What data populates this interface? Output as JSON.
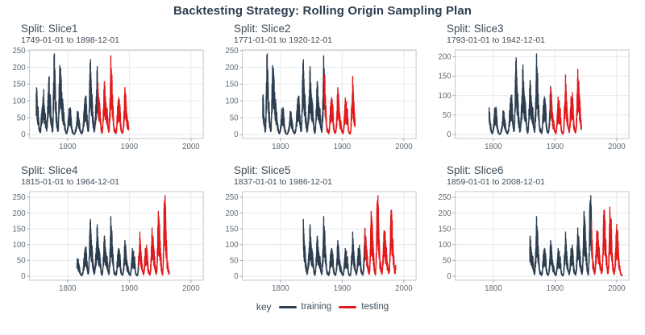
{
  "chart_data": {
    "type": "line",
    "title": "Backtesting Strategy: Rolling Origin Sampling Plan",
    "legend": {
      "title": "key",
      "position": "bottom",
      "items": [
        {
          "label": "training",
          "color": "#2c3e50"
        },
        {
          "label": "testing",
          "color": "#e31a1c"
        }
      ]
    },
    "grid": "on",
    "x_domain": [
      1738,
      2020
    ],
    "x_ticks": [
      1800,
      1900,
      2000
    ],
    "y_tick_step": 50,
    "colors": {
      "title": "#2c3e50",
      "facet_text": "#3e4c59",
      "tick_label": "#5f6b76",
      "gridline": "#e4e8ec",
      "panel_border": "#c2c8cd",
      "background": "#ffffff"
    },
    "annual_values": {
      "start_year": 1749,
      "end_year": 2008,
      "values": [
        81,
        83,
        48,
        48,
        31,
        12,
        10,
        10,
        32,
        48,
        54,
        63,
        86,
        61,
        45,
        36,
        21,
        11,
        38,
        70,
        106,
        101,
        82,
        67,
        35,
        31,
        7,
        20,
        93,
        154,
        126,
        85,
        68,
        39,
        23,
        10,
        24,
        83,
        132,
        131,
        118,
        90,
        67,
        60,
        47,
        41,
        21,
        16,
        6,
        4,
        7,
        15,
        34,
        45,
        43,
        48,
        42,
        28,
        10,
        8,
        3,
        0,
        1,
        5,
        12,
        14,
        35,
        46,
        41,
        30,
        24,
        16,
        7,
        4,
        2,
        9,
        17,
        36,
        50,
        64,
        67,
        71,
        48,
        28,
        9,
        13,
        57,
        122,
        138,
        103,
        86,
        65,
        37,
        24,
        11,
        15,
        40,
        62,
        98,
        125,
        96,
        67,
        65,
        54,
        39,
        21,
        7,
        4,
        23,
        55,
        94,
        96,
        77,
        59,
        44,
        47,
        31,
        16,
        7,
        38,
        74,
        139,
        111,
        102,
        66,
        45,
        17,
        11,
        12,
        3,
        6,
        32,
        54,
        60,
        64,
        64,
        52,
        25,
        13,
        7,
        6,
        7,
        36,
        73,
        85,
        78,
        64,
        42,
        26,
        27,
        12,
        10,
        3,
        5,
        24,
        42,
        64,
        54,
        62,
        49,
        44,
        19,
        6,
        4,
        1,
        10,
        47,
        57,
        104,
        81,
        64,
        38,
        26,
        14,
        6,
        17,
        44,
        64,
        69,
        78,
        65,
        36,
        21,
        11,
        6,
        9,
        36,
        80,
        114,
        110,
        89,
        68,
        48,
        31,
        16,
        10,
        33,
        93,
        152,
        136,
        135,
        84,
        69,
        32,
        14,
        4,
        38,
        142,
        190,
        185,
        159,
        112,
        54,
        38,
        28,
        10,
        15,
        47,
        94,
        106,
        106,
        105,
        67,
        69,
        38,
        35,
        16,
        13,
        28,
        93,
        155,
        155,
        140,
        116,
        67,
        46,
        18,
        13,
        29,
        100,
        158,
        143,
        146,
        94,
        55,
        30,
        18,
        9,
        22,
        64,
        93,
        120,
        111,
        104,
        64,
        40,
        30,
        15,
        8,
        3
      ]
    },
    "facets": [
      {
        "name": "Split: Slice1",
        "subtitle": "1749-01-01 to 1898-12-01",
        "start": 1749,
        "end": 1898,
        "test_start": 1849,
        "y_ticks": [
          0,
          50,
          100,
          150,
          200,
          250
        ],
        "y_max_data": 240
      },
      {
        "name": "Split: Slice2",
        "subtitle": "1771-01-01 to 1920-12-01",
        "start": 1771,
        "end": 1920,
        "test_start": 1871,
        "y_ticks": [
          0,
          50,
          100,
          150,
          200,
          250
        ],
        "y_max_data": 240
      },
      {
        "name": "Split: Slice3",
        "subtitle": "1793-01-01 to 1942-12-01",
        "start": 1793,
        "end": 1942,
        "test_start": 1893,
        "y_ticks": [
          0,
          50,
          100,
          150,
          200
        ],
        "y_max_data": 207
      },
      {
        "name": "Split: Slice4",
        "subtitle": "1815-01-01 to 1964-12-01",
        "start": 1815,
        "end": 1964,
        "test_start": 1915,
        "y_ticks": [
          0,
          50,
          100,
          150,
          200,
          250
        ],
        "y_max_data": 255
      },
      {
        "name": "Split: Slice5",
        "subtitle": "1837-01-01 to 1986-12-01",
        "start": 1837,
        "end": 1986,
        "test_start": 1937,
        "y_ticks": [
          0,
          50,
          100,
          150,
          200,
          250
        ],
        "y_max_data": 255
      },
      {
        "name": "Split: Slice6",
        "subtitle": "1859-01-01 to 2008-12-01",
        "start": 1859,
        "end": 2008,
        "test_start": 1959,
        "y_ticks": [
          0,
          50,
          100,
          150,
          200,
          250
        ],
        "y_max_data": 255
      }
    ]
  }
}
